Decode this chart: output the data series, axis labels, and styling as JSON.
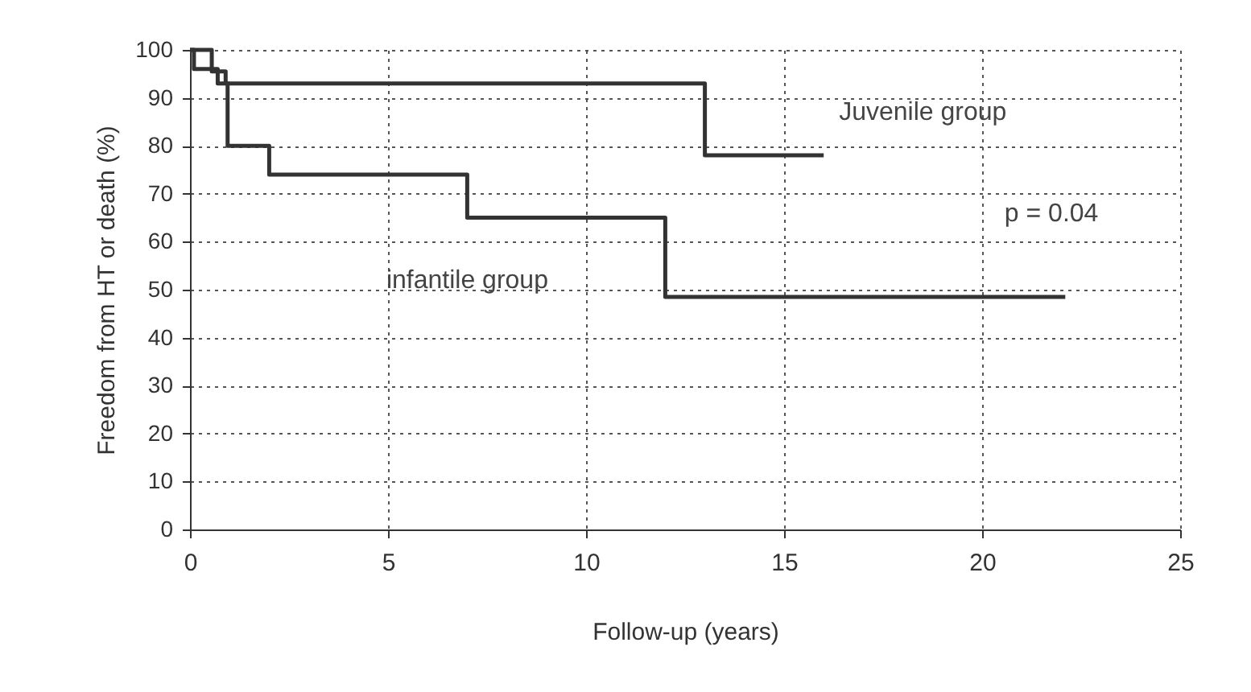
{
  "chart_data": {
    "type": "step",
    "xlabel": "Follow-up (years)",
    "ylabel": "Freedom from HT or death (%)",
    "xlim": [
      0,
      25
    ],
    "xticks": [
      0,
      5,
      10,
      15,
      20,
      25
    ],
    "ylim": [
      0,
      100
    ],
    "yticks": [
      0,
      10,
      20,
      30,
      40,
      50,
      60,
      70,
      80,
      90,
      100
    ],
    "grid": true,
    "line_style": "solid",
    "annotations": [
      "p = 0.04"
    ],
    "series": [
      {
        "name": "Juvenile group",
        "color": "#333333",
        "x": [
          0,
          0.55,
          0.9,
          13,
          16
        ],
        "values": [
          100,
          95.5,
          93,
          78,
          78
        ]
      },
      {
        "name": "infantile group",
        "color": "#333333",
        "x": [
          0,
          0.1,
          0.7,
          0.95,
          2,
          7,
          12,
          22.1
        ],
        "values": [
          100,
          96,
          93,
          80,
          74,
          65,
          48.5,
          48.5
        ]
      }
    ]
  }
}
